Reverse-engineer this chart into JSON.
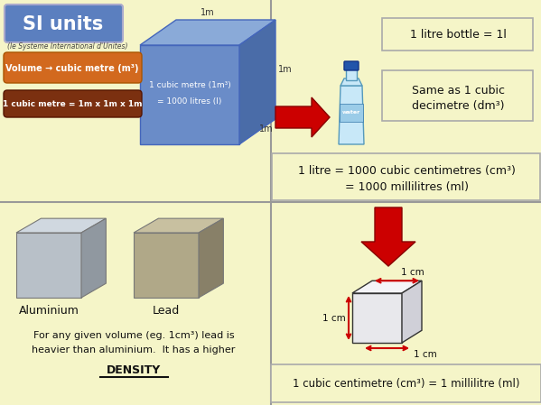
{
  "bg_color": "#F5F5C8",
  "title": "SI units",
  "title_bg": "#5B7FBF",
  "title_text_color": "white",
  "subtitle": "(le Systeme International d'Unites)",
  "btn1_text": "Volume → cubic metre (m³)",
  "btn1_color": "#D2691E",
  "btn2_text": "1 cubic metre = 1m x 1m x 1m",
  "btn2_color": "#7B3010",
  "cube_face_front": "#6A8CC8",
  "cube_face_top": "#8AAAD8",
  "cube_face_right": "#4A6CA8",
  "cube_text1": "1 cubic metre (1m³)",
  "cube_text2": "= 1000 litres (l)",
  "panel_divider_color": "#999999",
  "box1_text": "1 litre bottle = 1l",
  "box2_text1": "Same as 1 cubic",
  "box2_text2": "decimetre (dm³)",
  "box3_text1": "1 litre = 1000 cubic centimetres (cm³)",
  "box3_text2": "= 1000 millilitres (ml)",
  "alum_label": "Aluminium",
  "lead_label": "Lead",
  "density_text1": "For any given volume (eg. 1cm³) lead is",
  "density_text2": "heavier than aluminium.  It has a higher",
  "density_bold": "DENSITY",
  "box4_text": "1 cubic centimetre (cm³) = 1 millilitre (ml)",
  "arrow_color": "#CC0000",
  "box_border_color": "#AAAAAA",
  "small_cube_front": "#E0E0E8",
  "small_cube_top": "#F0F0F8",
  "small_cube_right": "#C8C8D0",
  "alum_front": "#B8C0C8",
  "alum_top": "#D0D8E0",
  "alum_right": "#9098A0",
  "lead_front": "#B0A888",
  "lead_top": "#C8C0A0",
  "lead_right": "#888068"
}
